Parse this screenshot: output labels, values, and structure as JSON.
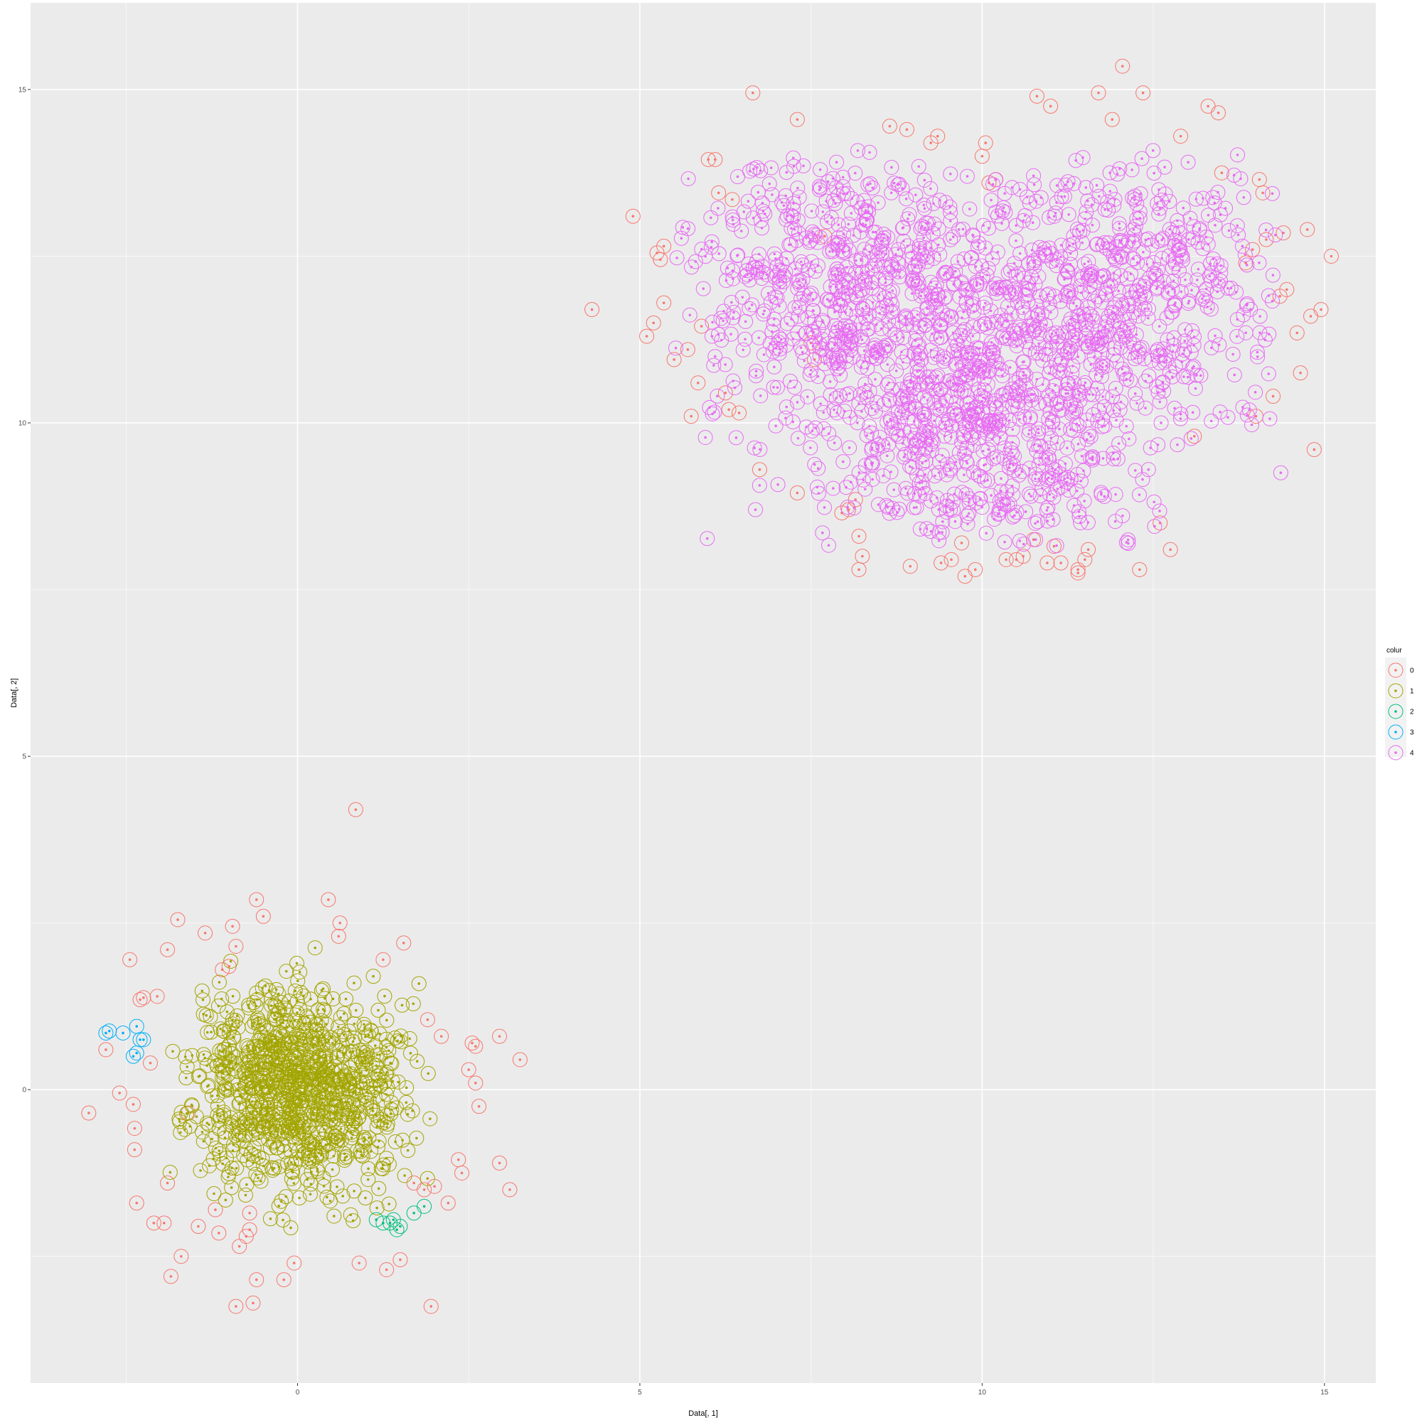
{
  "chart_data": {
    "type": "scatter",
    "title": "",
    "xlabel": "Data[, 1]",
    "ylabel": "Data[, 2]",
    "xlim": [
      -3.9,
      15.75
    ],
    "ylim": [
      -4.4,
      16.3
    ],
    "x_ticks": [
      0,
      5,
      10,
      15
    ],
    "y_ticks": [
      0,
      5,
      10,
      15
    ],
    "grid": true,
    "legend": {
      "title": "colur",
      "placement": "right"
    },
    "marker": "circle with center dot",
    "series": [
      {
        "name": "0",
        "color": "#F8766D",
        "points": [
          [
            -3.05,
            -0.35
          ],
          [
            -2.8,
            0.6
          ],
          [
            -2.6,
            -0.05
          ],
          [
            -2.45,
            1.95
          ],
          [
            -2.4,
            -0.22
          ],
          [
            -2.38,
            -0.58
          ],
          [
            -2.38,
            -0.9
          ],
          [
            -2.35,
            -1.7
          ],
          [
            -2.3,
            1.35
          ],
          [
            -2.25,
            1.38
          ],
          [
            -2.15,
            0.4
          ],
          [
            -2.1,
            -2.0
          ],
          [
            -2.05,
            1.4
          ],
          [
            -1.95,
            -2.0
          ],
          [
            -1.9,
            2.1
          ],
          [
            -1.9,
            -1.4
          ],
          [
            -1.85,
            -2.8
          ],
          [
            -1.75,
            2.55
          ],
          [
            -1.7,
            -2.5
          ],
          [
            -1.6,
            -0.35
          ],
          [
            -1.45,
            -2.05
          ],
          [
            -1.35,
            2.35
          ],
          [
            -1.2,
            -1.8
          ],
          [
            -1.15,
            -2.15
          ],
          [
            -1.1,
            1.8
          ],
          [
            -1.0,
            1.85
          ],
          [
            -0.95,
            2.45
          ],
          [
            -0.9,
            -3.25
          ],
          [
            -0.9,
            2.15
          ],
          [
            -0.85,
            -2.35
          ],
          [
            -0.75,
            -2.2
          ],
          [
            -0.7,
            -2.1
          ],
          [
            -0.7,
            -1.85
          ],
          [
            -0.65,
            -3.2
          ],
          [
            -0.6,
            2.85
          ],
          [
            -0.6,
            -2.85
          ],
          [
            -0.5,
            2.6
          ],
          [
            -0.2,
            -2.85
          ],
          [
            -0.05,
            -2.6
          ],
          [
            0.45,
            2.85
          ],
          [
            0.6,
            2.3
          ],
          [
            0.62,
            2.5
          ],
          [
            0.85,
            4.2
          ],
          [
            0.9,
            -2.6
          ],
          [
            1.25,
            1.95
          ],
          [
            1.3,
            -2.7
          ],
          [
            1.5,
            -2.55
          ],
          [
            1.55,
            2.2
          ],
          [
            1.85,
            -1.5
          ],
          [
            1.95,
            -3.25
          ],
          [
            2.0,
            -1.45
          ],
          [
            2.2,
            -1.7
          ],
          [
            2.35,
            -1.05
          ],
          [
            2.4,
            -1.25
          ],
          [
            2.5,
            0.3
          ],
          [
            2.55,
            0.7
          ],
          [
            2.6,
            0.65
          ],
          [
            2.6,
            0.1
          ],
          [
            2.65,
            -0.25
          ],
          [
            2.95,
            0.8
          ],
          [
            2.95,
            -1.1
          ],
          [
            3.1,
            -1.5
          ],
          [
            3.25,
            0.45
          ],
          [
            1.7,
            -1.4
          ],
          [
            1.9,
            1.05
          ],
          [
            2.1,
            0.8
          ],
          [
            4.3,
            11.7
          ],
          [
            4.9,
            13.1
          ],
          [
            5.1,
            11.3
          ],
          [
            5.2,
            11.5
          ],
          [
            5.25,
            12.55
          ],
          [
            5.3,
            12.45
          ],
          [
            5.35,
            11.8
          ],
          [
            5.35,
            12.65
          ],
          [
            5.5,
            10.95
          ],
          [
            5.7,
            11.1
          ],
          [
            5.75,
            10.1
          ],
          [
            5.85,
            10.6
          ],
          [
            5.9,
            11.45
          ],
          [
            6.0,
            13.95
          ],
          [
            6.1,
            13.95
          ],
          [
            6.15,
            13.45
          ],
          [
            6.25,
            10.45
          ],
          [
            6.3,
            10.2
          ],
          [
            6.35,
            13.35
          ],
          [
            6.45,
            10.15
          ],
          [
            6.65,
            14.95
          ],
          [
            6.75,
            9.3
          ],
          [
            7.3,
            14.55
          ],
          [
            7.3,
            8.95
          ],
          [
            7.5,
            11.2
          ],
          [
            7.55,
            10.95
          ],
          [
            7.7,
            12.8
          ],
          [
            7.95,
            8.65
          ],
          [
            8.05,
            8.7
          ],
          [
            8.15,
            8.85
          ],
          [
            8.2,
            8.3
          ],
          [
            8.2,
            7.8
          ],
          [
            8.25,
            8.0
          ],
          [
            8.65,
            14.45
          ],
          [
            8.9,
            14.4
          ],
          [
            8.95,
            7.85
          ],
          [
            9.25,
            14.2
          ],
          [
            9.35,
            14.3
          ],
          [
            9.4,
            7.9
          ],
          [
            9.55,
            7.95
          ],
          [
            9.7,
            8.2
          ],
          [
            9.75,
            7.7
          ],
          [
            9.9,
            7.8
          ],
          [
            10.0,
            14.0
          ],
          [
            10.05,
            14.2
          ],
          [
            10.1,
            13.6
          ],
          [
            10.2,
            13.65
          ],
          [
            10.35,
            7.95
          ],
          [
            10.5,
            7.95
          ],
          [
            10.6,
            8.0
          ],
          [
            10.75,
            8.25
          ],
          [
            10.8,
            14.9
          ],
          [
            10.95,
            7.9
          ],
          [
            11.0,
            14.75
          ],
          [
            11.05,
            8.15
          ],
          [
            11.15,
            7.9
          ],
          [
            11.4,
            7.8
          ],
          [
            11.4,
            7.75
          ],
          [
            11.5,
            7.95
          ],
          [
            11.55,
            8.1
          ],
          [
            11.7,
            14.95
          ],
          [
            11.9,
            14.55
          ],
          [
            12.05,
            15.35
          ],
          [
            12.3,
            7.8
          ],
          [
            12.35,
            14.95
          ],
          [
            12.6,
            8.5
          ],
          [
            12.75,
            8.1
          ],
          [
            12.9,
            14.3
          ],
          [
            13.1,
            9.8
          ],
          [
            13.3,
            14.75
          ],
          [
            13.45,
            14.65
          ],
          [
            13.95,
            12.6
          ],
          [
            14.0,
            10.1
          ],
          [
            14.05,
            13.65
          ],
          [
            14.1,
            13.45
          ],
          [
            14.15,
            12.75
          ],
          [
            14.25,
            10.4
          ],
          [
            14.35,
            11.9
          ],
          [
            14.4,
            12.85
          ],
          [
            14.45,
            12.0
          ],
          [
            14.6,
            11.35
          ],
          [
            14.65,
            10.75
          ],
          [
            14.75,
            12.9
          ],
          [
            14.8,
            11.6
          ],
          [
            14.85,
            9.6
          ],
          [
            14.95,
            11.7
          ],
          [
            15.1,
            12.5
          ],
          [
            13.5,
            13.75
          ],
          [
            13.85,
            12.4
          ]
        ]
      },
      {
        "name": "1",
        "color": "#A3A500",
        "cluster": {
          "center": [
            0.0,
            0.0
          ],
          "spread": [
            0.75,
            0.75
          ],
          "count": 900,
          "extent": [
            [
              -1.9,
              2.2
            ],
            [
              -2.45,
              2.15
            ]
          ]
        }
      },
      {
        "name": "2",
        "color": "#00BF7D",
        "points": [
          [
            1.15,
            -1.95
          ],
          [
            1.25,
            -2.0
          ],
          [
            1.35,
            -2.0
          ],
          [
            1.4,
            -1.95
          ],
          [
            1.45,
            -2.1
          ],
          [
            1.5,
            -2.05
          ],
          [
            1.7,
            -1.85
          ],
          [
            1.85,
            -1.75
          ]
        ]
      },
      {
        "name": "3",
        "color": "#00B0F6",
        "points": [
          [
            -2.8,
            0.85
          ],
          [
            -2.75,
            0.88
          ],
          [
            -2.55,
            0.85
          ],
          [
            -2.35,
            0.95
          ],
          [
            -2.3,
            0.75
          ],
          [
            -2.25,
            0.75
          ],
          [
            -2.35,
            0.55
          ],
          [
            -2.4,
            0.5
          ]
        ]
      },
      {
        "name": "4",
        "color": "#E76BF3",
        "cluster": {
          "centers": [
            [
              8.0,
              12.0
            ],
            [
              12.0,
              12.0
            ],
            [
              10.0,
              10.0
            ]
          ],
          "spread": [
            1.2,
            1.05
          ],
          "count": 1800,
          "extent": [
            [
              5.5,
              14.4
            ],
            [
              8.15,
              14.1
            ]
          ]
        }
      }
    ]
  }
}
